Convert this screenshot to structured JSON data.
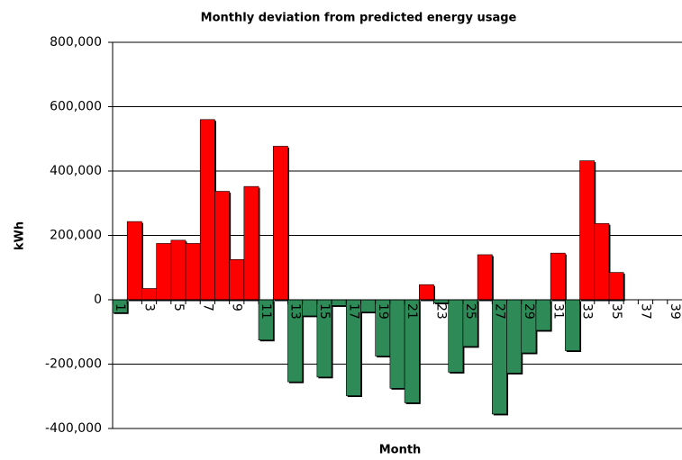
{
  "chart_data": {
    "type": "bar",
    "title": "Monthly deviation from predicted energy usage",
    "x_label": "Month",
    "y_label": "kWh",
    "categories": [
      1,
      null,
      3,
      null,
      5,
      null,
      7,
      null,
      9,
      null,
      11,
      null,
      13,
      null,
      15,
      null,
      17,
      null,
      19,
      null,
      21,
      null,
      23,
      null,
      25,
      null,
      27,
      null,
      29,
      null,
      31,
      null,
      33,
      null,
      35,
      null,
      37,
      null,
      39
    ],
    "values": [
      -40000,
      243000,
      35000,
      175000,
      185000,
      175000,
      560000,
      337000,
      125000,
      352000,
      -125000,
      477000,
      -255000,
      -50000,
      -240000,
      -18000,
      -298000,
      -38000,
      -175000,
      -275000,
      -320000,
      47000,
      -10000,
      -225000,
      -145000,
      140000,
      -355000,
      -228000,
      -165000,
      -95000,
      145000,
      -158000,
      432000,
      237000,
      85000,
      null,
      null,
      null,
      null
    ],
    "positive_color": "#ff0000",
    "negative_color": "#2e8b57",
    "ylim": [
      -400000,
      800000
    ],
    "yticks": [
      {
        "value": -400000,
        "label": "-400,000"
      },
      {
        "value": -200000,
        "label": "-200,000"
      },
      0,
      {
        "value": 200000,
        "label": "200,000"
      },
      {
        "value": 400000,
        "label": "400,000"
      },
      {
        "value": 600000,
        "label": "600,000"
      },
      {
        "value": 800000,
        "label": "800,000"
      }
    ],
    "grid": true
  }
}
